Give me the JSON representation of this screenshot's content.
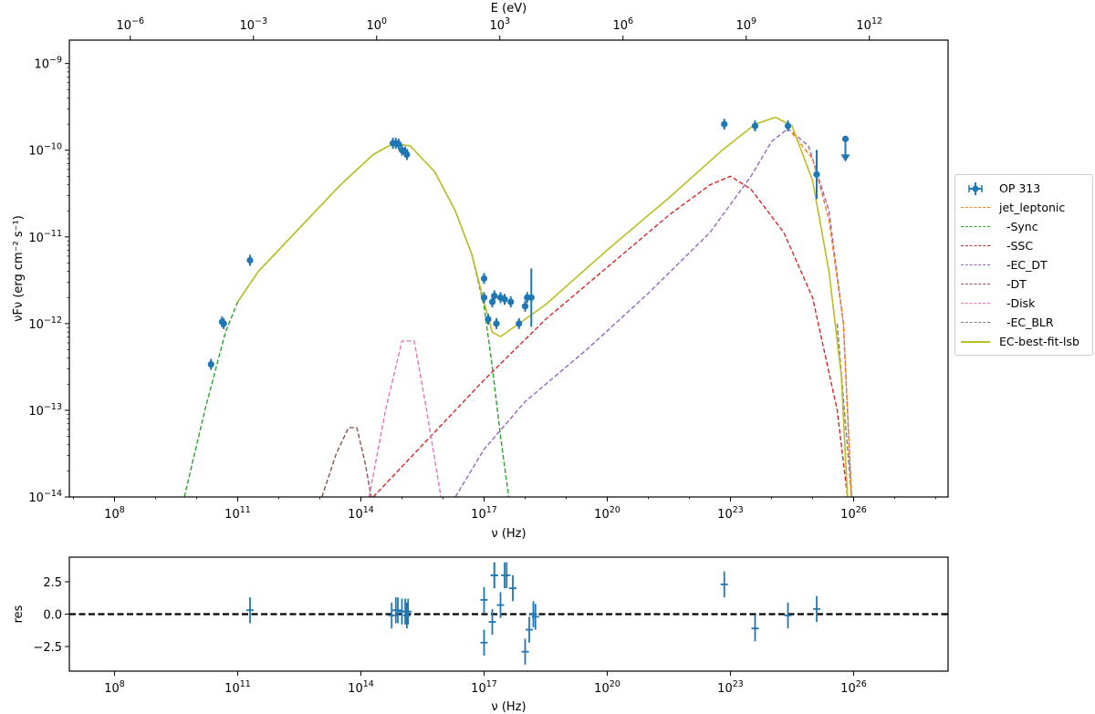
{
  "chart_data": [
    {
      "type": "line",
      "title": "",
      "xlabel": "ν  (Hz)",
      "ylabel": "νFν  (erg cm⁻² s⁻¹)",
      "top_xlabel": "E (eV)",
      "xscale": "log",
      "yscale": "log",
      "xlim_log10": [
        6.9,
        28.3
      ],
      "ylim_log10": [
        -14,
        -8.73
      ],
      "x_ticks": [
        "10^8",
        "10^11",
        "10^14",
        "10^17",
        "10^20",
        "10^23",
        "10^26"
      ],
      "x_ticks_log10": [
        8,
        11,
        14,
        17,
        20,
        23,
        26
      ],
      "top_x_ticks": [
        "10^-6",
        "10^-3",
        "10^0",
        "10^3",
        "10^6",
        "10^9",
        "10^12"
      ],
      "y_ticks": [
        "10^-14",
        "10^-13",
        "10^-12",
        "10^-11",
        "10^-10",
        "10^-9"
      ],
      "grid": false,
      "legend_position": "outside right",
      "legend": [
        "OP 313",
        "jet_leptonic",
        "-Sync",
        "-SSC",
        "-EC_DT",
        "-DT",
        "-Disk",
        "-EC_BLR",
        "EC-best-fit-lsb"
      ],
      "data_points_log10": {
        "x": [
          10.35,
          10.62,
          10.66,
          11.3,
          14.78,
          14.85,
          14.92,
          15.0,
          15.08,
          15.12,
          17.0,
          17.0,
          17.1,
          17.2,
          17.25,
          17.3,
          17.4,
          17.5,
          17.65,
          17.85,
          18.0,
          18.05,
          18.15,
          22.85,
          23.6,
          24.4,
          25.1,
          25.8
        ],
        "y": [
          -12.47,
          -11.98,
          -12.0,
          -11.27,
          -9.92,
          -9.92,
          -9.93,
          -10.0,
          -10.02,
          -10.05,
          -11.48,
          -11.7,
          -11.95,
          -11.75,
          -11.68,
          -12.0,
          -11.7,
          -11.72,
          -11.75,
          -12.0,
          -11.8,
          -11.7,
          -11.7,
          -9.7,
          -9.72,
          -9.72,
          -10.28,
          -9.87
        ],
        "upper_limit_index": 27
      },
      "series": [
        {
          "name": "-Sync",
          "color": "#2ca02c",
          "style": "dashed",
          "x": [
            9.7,
            10.2,
            10.7,
            11.0,
            11.5,
            12.5,
            13.5,
            14.3,
            14.8,
            15.2,
            15.8,
            16.3,
            16.7,
            17.0,
            17.2,
            17.4,
            17.6
          ],
          "y": [
            -14.0,
            -13.0,
            -12.1,
            -11.75,
            -11.4,
            -10.9,
            -10.4,
            -10.05,
            -9.92,
            -9.95,
            -10.25,
            -10.7,
            -11.2,
            -11.8,
            -12.5,
            -13.3,
            -14.0
          ]
        },
        {
          "name": "-SSC",
          "color": "#d62728",
          "style": "dashed",
          "x": [
            14.3,
            15.5,
            17.0,
            18.5,
            20.0,
            21.5,
            22.5,
            23.0,
            23.5,
            24.3,
            25.0,
            25.6,
            25.85
          ],
          "y": [
            -14.0,
            -13.4,
            -12.65,
            -11.95,
            -11.35,
            -10.75,
            -10.4,
            -10.3,
            -10.45,
            -10.95,
            -11.7,
            -13.0,
            -14.0
          ]
        },
        {
          "name": "-EC_DT",
          "color": "#9467bd",
          "style": "dashed",
          "x": [
            16.3,
            17.0,
            18.0,
            19.5,
            21.0,
            22.5,
            23.5,
            24.0,
            24.4,
            24.9,
            25.4,
            25.75,
            25.95
          ],
          "y": [
            -14.0,
            -13.45,
            -12.9,
            -12.3,
            -11.65,
            -10.95,
            -10.3,
            -9.9,
            -9.75,
            -9.95,
            -10.7,
            -12.0,
            -14.0
          ]
        },
        {
          "name": "-DT",
          "color": "#8c564b",
          "style": "dashed",
          "x": [
            13.05,
            13.4,
            13.7,
            13.9,
            14.1,
            14.25
          ],
          "y": [
            -14.0,
            -13.5,
            -13.2,
            -13.2,
            -13.6,
            -14.0
          ]
        },
        {
          "name": "-Disk",
          "color": "#e377c2",
          "style": "dashed",
          "x": [
            14.2,
            14.6,
            15.0,
            15.3,
            15.6,
            15.95
          ],
          "y": [
            -14.0,
            -13.0,
            -12.2,
            -12.2,
            -13.0,
            -14.0
          ]
        },
        {
          "name": "-EC_BLR",
          "color": "#7f7f7f",
          "style": "dashed",
          "x": [
            25.6,
            25.95
          ],
          "y": [
            -12.0,
            -14.0
          ]
        },
        {
          "name": "jet_leptonic",
          "color": "#ff7f0e",
          "style": "dashed",
          "x": [
            24.5,
            25.0,
            25.4,
            25.75,
            25.95
          ],
          "y": [
            -9.8,
            -10.1,
            -10.8,
            -12.0,
            -14.0
          ]
        },
        {
          "name": "EC-best-fit-lsb",
          "color": "#bcbd22",
          "style": "solid",
          "x": [
            11.0,
            11.5,
            12.5,
            13.5,
            14.3,
            14.8,
            15.2,
            15.8,
            16.3,
            16.7,
            17.0,
            17.2,
            17.4,
            17.7,
            18.5,
            20.0,
            21.5,
            22.8,
            23.6,
            24.1,
            24.5,
            25.0,
            25.4,
            25.7,
            25.85
          ],
          "y": [
            -11.75,
            -11.4,
            -10.9,
            -10.4,
            -10.05,
            -9.92,
            -9.95,
            -10.25,
            -10.7,
            -11.2,
            -11.75,
            -12.1,
            -12.15,
            -12.05,
            -11.78,
            -11.15,
            -10.55,
            -10.0,
            -9.7,
            -9.62,
            -9.72,
            -10.35,
            -11.4,
            -12.6,
            -14.0
          ]
        }
      ]
    },
    {
      "type": "scatter",
      "title": "",
      "xlabel": "ν  (Hz)",
      "ylabel": "res",
      "xlim_log10": [
        6.9,
        28.3
      ],
      "ylim": [
        -4.4,
        4.4
      ],
      "y_ticks": [
        "2.5",
        "0.0",
        "−2.5"
      ],
      "x_ticks": [
        "10^8",
        "10^11",
        "10^14",
        "10^17",
        "10^20",
        "10^23",
        "10^26"
      ],
      "reference_line": 0.0,
      "x_log10": [
        11.3,
        14.75,
        14.85,
        14.9,
        15.0,
        15.08,
        15.12,
        15.15,
        17.0,
        17.0,
        17.2,
        17.25,
        17.25,
        17.4,
        17.5,
        17.55,
        17.7,
        18.0,
        18.1,
        18.2,
        18.25,
        22.85,
        23.6,
        24.4,
        25.1
      ],
      "values": [
        0.3,
        -0.1,
        0.3,
        0.3,
        0.2,
        0.2,
        -0.1,
        0.2,
        1.1,
        -2.2,
        -0.6,
        3.0,
        3.0,
        0.7,
        3.0,
        3.0,
        2.0,
        -2.9,
        -1.2,
        0.0,
        -0.2,
        2.3,
        -1.1,
        -0.1,
        0.4
      ],
      "errors": [
        1.0,
        1.0,
        1.0,
        1.0,
        1.0,
        1.0,
        1.0,
        1.0,
        1.0,
        1.0,
        1.0,
        1.0,
        1.0,
        1.0,
        1.0,
        1.0,
        1.0,
        1.0,
        1.0,
        1.0,
        1.0,
        1.0,
        1.0,
        1.0,
        1.0
      ]
    }
  ],
  "labels": {
    "top_xlabel": "E (eV)",
    "main_xlabel": "ν  (Hz)",
    "res_xlabel": "ν  (Hz)",
    "main_ylabel": "νFν  (erg cm⁻² s⁻¹)",
    "res_ylabel": "res"
  },
  "legend": [
    {
      "label": "OP 313",
      "color": "#1f77b4",
      "kind": "errorbar"
    },
    {
      "label": "jet_leptonic",
      "color": "#ff7f0e",
      "kind": "dashed"
    },
    {
      "label": "  -Sync",
      "color": "#2ca02c",
      "kind": "dashed"
    },
    {
      "label": "  -SSC",
      "color": "#d62728",
      "kind": "dashed"
    },
    {
      "label": "  -EC_DT",
      "color": "#9467bd",
      "kind": "dashed"
    },
    {
      "label": "  -DT",
      "color": "#8c564b",
      "kind": "dashed"
    },
    {
      "label": "  -Disk",
      "color": "#e377c2",
      "kind": "dashed"
    },
    {
      "label": "  -EC_BLR",
      "color": "#7f7f7f",
      "kind": "dashed"
    },
    {
      "label": "EC-best-fit-lsb",
      "color": "#bcbd22",
      "kind": "solid"
    }
  ],
  "colors": {
    "data": "#1f77b4",
    "axis": "#000000"
  }
}
